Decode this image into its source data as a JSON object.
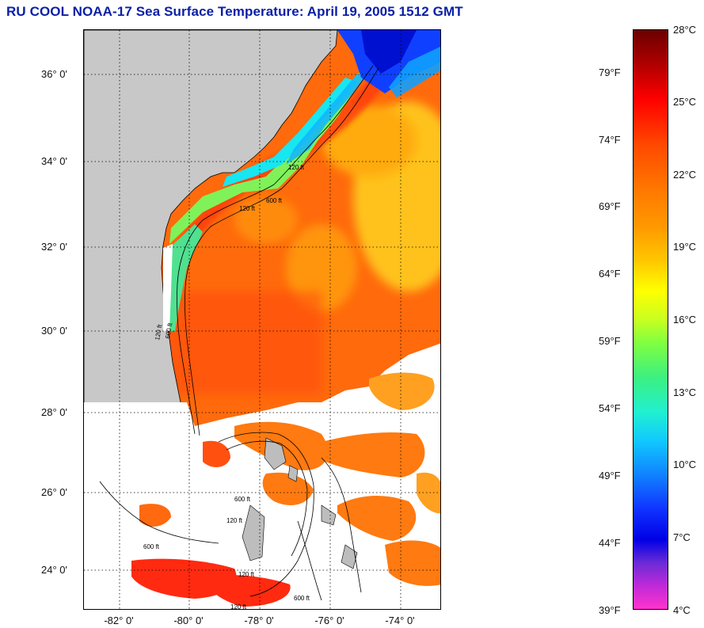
{
  "title": "RU COOL  NOAA-17  Sea Surface Temperature:  April 19, 2005 1512 GMT",
  "latitude_labels": [
    "36° 0'",
    "34° 0'",
    "32° 0'",
    "30° 0'",
    "28° 0'",
    "26° 0'",
    "24° 0'"
  ],
  "longitude_labels": [
    "-82° 0'",
    "-80° 0'",
    "-78° 0'",
    "-76° 0'",
    "-74° 0'"
  ],
  "contour_labels": [
    "120 ft",
    "600 ft",
    "120 ft",
    "600 ft",
    "120 ft",
    "600 ft",
    "120 ft",
    "600 ft",
    "120 ft",
    "600 ft",
    "120 ft"
  ],
  "colorbar": {
    "fahrenheit_labels": [
      "79°F",
      "74°F",
      "69°F",
      "64°F",
      "59°F",
      "54°F",
      "49°F",
      "44°F",
      "39°F"
    ],
    "celsius_labels": [
      "28°C",
      "25°C",
      "22°C",
      "19°C",
      "16°C",
      "13°C",
      "10°C",
      "7°C",
      "4°C"
    ],
    "range_celsius": [
      4,
      28
    ]
  },
  "colors": {
    "title": "#0a1fa6",
    "land": "#c8c8c8",
    "cloud": "#ffffff",
    "warm": "#ff5a00",
    "cold": "#0030ff"
  }
}
